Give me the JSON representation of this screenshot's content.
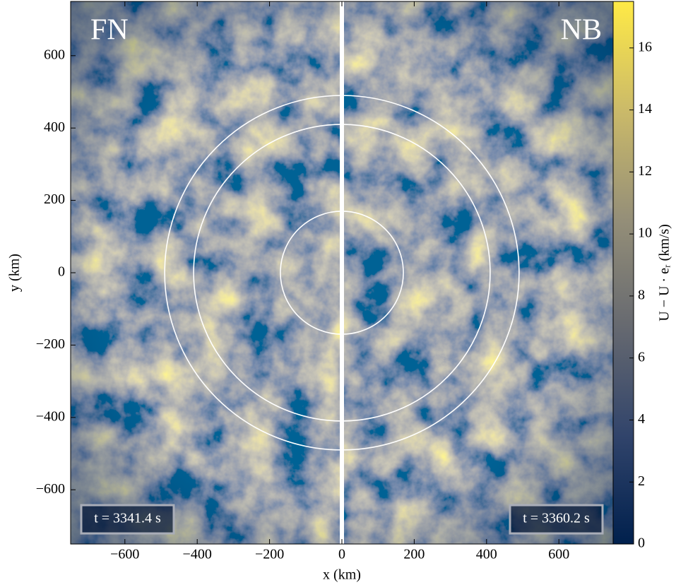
{
  "chart_data": {
    "type": "heatmap",
    "panels": [
      {
        "label": "FN",
        "time": "t = 3341.4 s"
      },
      {
        "label": "NB",
        "time": "t = 3360.2 s"
      }
    ],
    "xlabel": "x (km)",
    "ylabel": "y (km)",
    "colorbar_label": "U − U · eᵣ (km/s)",
    "xlim": [
      -750,
      750
    ],
    "ylim": [
      -750,
      750
    ],
    "xticks": [
      {
        "value": -600,
        "label": "−600"
      },
      {
        "value": -400,
        "label": "−400"
      },
      {
        "value": -200,
        "label": "−200"
      },
      0,
      200,
      400,
      600
    ],
    "yticks": [
      {
        "value": -600,
        "label": "−600"
      },
      {
        "value": -400,
        "label": "−400"
      },
      {
        "value": -200,
        "label": "−200"
      },
      0,
      200,
      400,
      600
    ],
    "clim": [
      0,
      17.5
    ],
    "cticks": [
      0,
      2,
      4,
      6,
      8,
      10,
      12,
      14,
      16
    ],
    "colormap": [
      "#00204d",
      "#31446b",
      "#666970",
      "#958f78",
      "#cbba69",
      "#ffea46"
    ],
    "circle_radii": [
      170,
      410,
      490
    ],
    "circle_color": "#ffffff"
  }
}
